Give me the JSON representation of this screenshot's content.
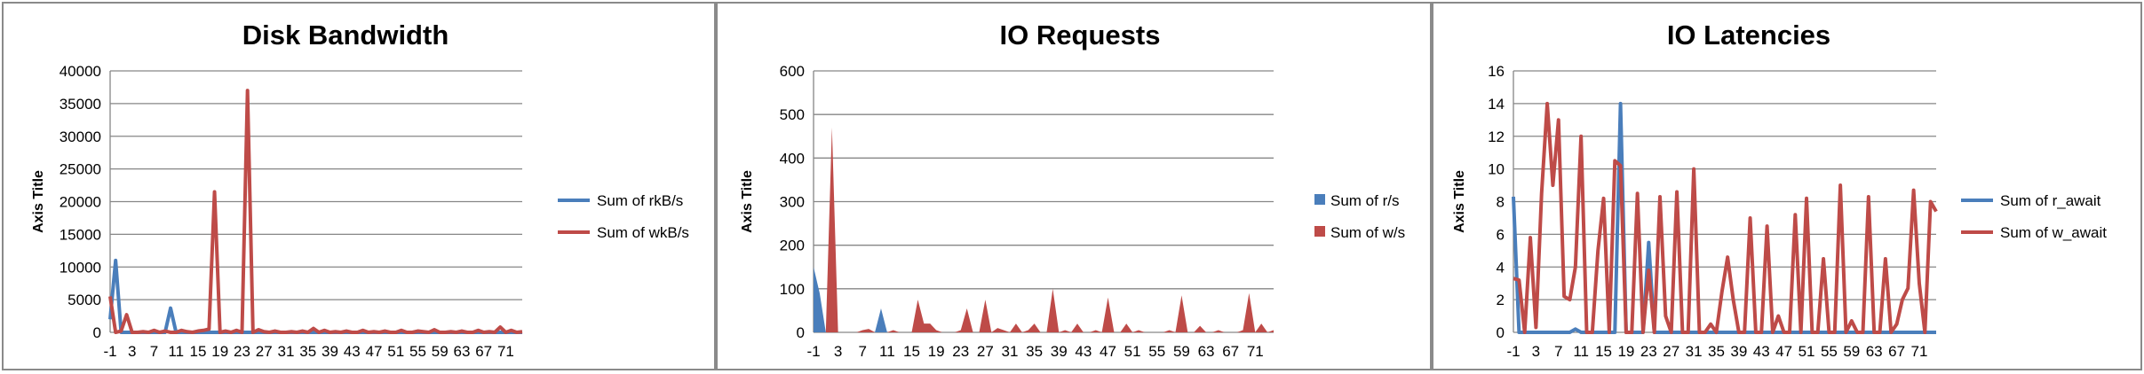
{
  "chart_data": [
    {
      "type": "line",
      "title": "Disk Bandwidth",
      "ylabel": "Axis Title",
      "xlabel": "",
      "ylim": [
        0,
        40000
      ],
      "yticks": [
        0,
        5000,
        10000,
        15000,
        20000,
        25000,
        30000,
        35000,
        40000
      ],
      "x": [
        -1,
        0,
        1,
        2,
        3,
        4,
        5,
        6,
        7,
        8,
        9,
        10,
        11,
        12,
        13,
        14,
        15,
        16,
        17,
        18,
        19,
        20,
        21,
        22,
        23,
        24,
        25,
        26,
        27,
        28,
        29,
        30,
        31,
        32,
        33,
        34,
        35,
        36,
        37,
        38,
        39,
        40,
        41,
        42,
        43,
        44,
        45,
        46,
        47,
        48,
        49,
        50,
        51,
        52,
        53,
        54,
        55,
        56,
        57,
        58,
        59,
        60,
        61,
        62,
        63,
        64,
        65,
        66,
        67,
        68,
        69,
        70,
        71,
        72,
        73,
        74
      ],
      "xticks": [
        -1,
        3,
        7,
        11,
        15,
        19,
        23,
        27,
        31,
        35,
        39,
        43,
        47,
        51,
        55,
        59,
        63,
        67,
        71
      ],
      "legend_position": "right",
      "colors": [
        "#4a7ebb",
        "#be4b48"
      ],
      "series": [
        {
          "name": "Sum of rkB/s",
          "values": [
            2000,
            11000,
            0,
            0,
            0,
            0,
            0,
            0,
            0,
            0,
            0,
            3700,
            0,
            0,
            0,
            0,
            0,
            0,
            0,
            0,
            0,
            0,
            0,
            0,
            0,
            0,
            0,
            0,
            0,
            0,
            0,
            0,
            0,
            0,
            0,
            0,
            0,
            0,
            0,
            0,
            0,
            0,
            0,
            0,
            0,
            0,
            0,
            0,
            0,
            0,
            0,
            0,
            0,
            0,
            0,
            0,
            0,
            0,
            0,
            0,
            0,
            0,
            0,
            0,
            0,
            0,
            0,
            0,
            0,
            0,
            0,
            0,
            0,
            0,
            0,
            0
          ]
        },
        {
          "name": "Sum of wkB/s",
          "values": [
            5500,
            0,
            200,
            2700,
            0,
            0,
            100,
            0,
            300,
            0,
            200,
            0,
            0,
            300,
            100,
            0,
            200,
            300,
            500,
            21500,
            0,
            200,
            0,
            300,
            0,
            37000,
            0,
            400,
            100,
            0,
            200,
            0,
            0,
            100,
            0,
            200,
            0,
            600,
            0,
            300,
            0,
            100,
            0,
            200,
            0,
            0,
            300,
            0,
            100,
            0,
            200,
            0,
            0,
            300,
            0,
            0,
            200,
            100,
            0,
            400,
            0,
            0,
            100,
            0,
            200,
            0,
            0,
            300,
            0,
            100,
            0,
            800,
            0,
            300,
            0,
            100
          ]
        }
      ]
    },
    {
      "type": "area",
      "title": "IO Requests",
      "ylabel": "Axis Title",
      "xlabel": "",
      "ylim": [
        0,
        600
      ],
      "yticks": [
        0,
        100,
        200,
        300,
        400,
        500,
        600
      ],
      "x": [
        -1,
        0,
        1,
        2,
        3,
        4,
        5,
        6,
        7,
        8,
        9,
        10,
        11,
        12,
        13,
        14,
        15,
        16,
        17,
        18,
        19,
        20,
        21,
        22,
        23,
        24,
        25,
        26,
        27,
        28,
        29,
        30,
        31,
        32,
        33,
        34,
        35,
        36,
        37,
        38,
        39,
        40,
        41,
        42,
        43,
        44,
        45,
        46,
        47,
        48,
        49,
        50,
        51,
        52,
        53,
        54,
        55,
        56,
        57,
        58,
        59,
        60,
        61,
        62,
        63,
        64,
        65,
        66,
        67,
        68,
        69,
        70,
        71,
        72,
        73,
        74
      ],
      "xticks": [
        -1,
        3,
        7,
        11,
        15,
        19,
        23,
        27,
        31,
        35,
        39,
        43,
        47,
        51,
        55,
        59,
        63,
        67,
        71
      ],
      "legend_position": "right",
      "colors": [
        "#4a7ebb",
        "#be4b48"
      ],
      "series": [
        {
          "name": "Sum of r/s",
          "values": [
            150,
            90,
            0,
            0,
            0,
            0,
            0,
            0,
            0,
            0,
            0,
            55,
            0,
            0,
            0,
            0,
            0,
            0,
            0,
            0,
            0,
            0,
            0,
            0,
            0,
            0,
            0,
            0,
            0,
            0,
            0,
            0,
            0,
            0,
            0,
            0,
            0,
            0,
            0,
            0,
            0,
            0,
            0,
            0,
            0,
            0,
            0,
            0,
            0,
            0,
            0,
            0,
            0,
            0,
            0,
            0,
            0,
            0,
            0,
            0,
            0,
            0,
            0,
            0,
            0,
            0,
            0,
            0,
            0,
            0,
            0,
            0,
            0,
            0,
            0,
            0
          ]
        },
        {
          "name": "Sum of w/s",
          "values": [
            0,
            0,
            0,
            470,
            0,
            0,
            0,
            0,
            5,
            8,
            0,
            0,
            0,
            5,
            0,
            0,
            0,
            75,
            20,
            20,
            5,
            0,
            0,
            0,
            5,
            55,
            0,
            0,
            75,
            0,
            10,
            5,
            0,
            20,
            0,
            5,
            20,
            0,
            0,
            100,
            0,
            5,
            0,
            20,
            0,
            0,
            5,
            0,
            80,
            0,
            0,
            20,
            0,
            5,
            0,
            0,
            0,
            0,
            5,
            0,
            85,
            0,
            0,
            15,
            0,
            0,
            5,
            0,
            0,
            0,
            5,
            90,
            0,
            20,
            0,
            5
          ]
        }
      ]
    },
    {
      "type": "line",
      "title": "IO Latencies",
      "ylabel": "Axis Title",
      "xlabel": "",
      "ylim": [
        0,
        16
      ],
      "yticks": [
        0,
        2,
        4,
        6,
        8,
        10,
        12,
        14,
        16
      ],
      "x": [
        -1,
        0,
        1,
        2,
        3,
        4,
        5,
        6,
        7,
        8,
        9,
        10,
        11,
        12,
        13,
        14,
        15,
        16,
        17,
        18,
        19,
        20,
        21,
        22,
        23,
        24,
        25,
        26,
        27,
        28,
        29,
        30,
        31,
        32,
        33,
        34,
        35,
        36,
        37,
        38,
        39,
        40,
        41,
        42,
        43,
        44,
        45,
        46,
        47,
        48,
        49,
        50,
        51,
        52,
        53,
        54,
        55,
        56,
        57,
        58,
        59,
        60,
        61,
        62,
        63,
        64,
        65,
        66,
        67,
        68,
        69,
        70,
        71,
        72,
        73,
        74
      ],
      "xticks": [
        -1,
        3,
        7,
        11,
        15,
        19,
        23,
        27,
        31,
        35,
        39,
        43,
        47,
        51,
        55,
        59,
        63,
        67,
        71
      ],
      "legend_position": "right",
      "colors": [
        "#4a7ebb",
        "#be4b48"
      ],
      "series": [
        {
          "name": "Sum of r_await",
          "values": [
            8.3,
            0,
            0,
            0,
            0,
            0,
            0,
            0,
            0,
            0,
            0,
            0.2,
            0,
            0,
            0,
            0,
            0,
            0,
            0,
            14,
            0,
            0,
            0,
            0,
            5.5,
            0,
            0,
            0,
            0,
            0,
            0,
            0,
            0,
            0,
            0,
            0,
            0,
            0,
            0,
            0,
            0,
            0,
            0,
            0,
            0,
            0,
            0,
            0,
            0,
            0,
            0,
            0,
            0,
            0,
            0,
            0,
            0,
            0,
            0,
            0,
            0,
            0,
            0,
            0,
            0,
            0,
            0,
            0,
            0,
            0,
            0,
            0,
            0,
            0,
            0,
            0
          ]
        },
        {
          "name": "Sum of w_await",
          "values": [
            3.3,
            3.2,
            0,
            5.8,
            0.3,
            8.5,
            14,
            9,
            13,
            2.2,
            2,
            4,
            12,
            0,
            0,
            5,
            8.2,
            0,
            10.5,
            10.2,
            0,
            0,
            8.5,
            0,
            3.8,
            0,
            8.3,
            1,
            0,
            8.6,
            0,
            0,
            10,
            0,
            0,
            0.5,
            0,
            2.5,
            4.6,
            2,
            0,
            0,
            7,
            0,
            0,
            6.5,
            0,
            1,
            0,
            0,
            7.2,
            0,
            8.2,
            0,
            0,
            4.5,
            0,
            0,
            9,
            0,
            0.7,
            0,
            0,
            8.3,
            0,
            0,
            4.5,
            0,
            0.5,
            2,
            2.7,
            8.7,
            3,
            0,
            8,
            7.4
          ]
        }
      ]
    }
  ]
}
